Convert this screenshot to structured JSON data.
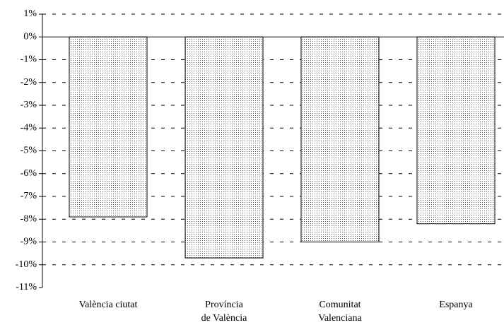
{
  "chart_data": {
    "type": "bar",
    "categories": [
      [
        "València ciutat"
      ],
      [
        "Província",
        "de València"
      ],
      [
        "Comunitat",
        "Valenciana"
      ],
      [
        "Espanya"
      ]
    ],
    "values": [
      -7.9,
      -9.7,
      -9.0,
      -8.2
    ],
    "color": "#555555",
    "ylim": [
      -11,
      1
    ],
    "yticks": [
      {
        "value": 1,
        "label": "1%"
      },
      {
        "value": 0,
        "label": "0%"
      },
      {
        "value": -1,
        "label": "-1%"
      },
      {
        "value": -2,
        "label": "-2%"
      },
      {
        "value": -3,
        "label": "-3%"
      },
      {
        "value": -4,
        "label": "-4%"
      },
      {
        "value": -5,
        "label": "-5%"
      },
      {
        "value": -6,
        "label": "-6%"
      },
      {
        "value": -7,
        "label": "-7%"
      },
      {
        "value": -8,
        "label": "-8%"
      },
      {
        "value": -9,
        "label": "-9%"
      },
      {
        "value": -10,
        "label": "-10%"
      },
      {
        "value": -11,
        "label": "-11%"
      }
    ],
    "grid": true
  }
}
